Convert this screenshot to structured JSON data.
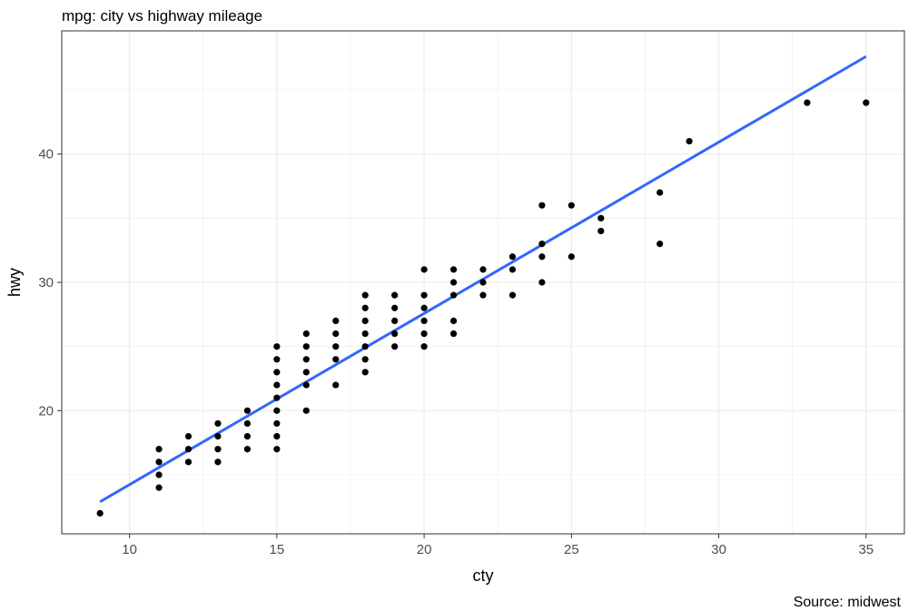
{
  "chart_data": {
    "type": "scatter",
    "title": "mpg: city vs highway mileage",
    "caption": "Source: midwest",
    "xlabel": "cty",
    "ylabel": "hwy",
    "xlim": [
      7.7,
      36.3
    ],
    "ylim": [
      10.4,
      49.6
    ],
    "x_ticks": [
      10,
      15,
      20,
      25,
      30,
      35
    ],
    "y_ticks": [
      20,
      30,
      40
    ],
    "grid": true,
    "legend": "none",
    "colors": {
      "points": "#000000",
      "trend_line": "#3366FF",
      "grid": "#ebebeb",
      "panel_border": "#333333"
    },
    "series": [
      {
        "kind": "points",
        "points": [
          [
            9,
            12
          ],
          [
            11,
            14
          ],
          [
            11,
            15
          ],
          [
            11,
            16
          ],
          [
            11,
            17
          ],
          [
            12,
            16
          ],
          [
            12,
            17
          ],
          [
            12,
            18
          ],
          [
            13,
            16
          ],
          [
            13,
            17
          ],
          [
            13,
            18
          ],
          [
            13,
            19
          ],
          [
            14,
            17
          ],
          [
            14,
            18
          ],
          [
            14,
            19
          ],
          [
            14,
            20
          ],
          [
            15,
            17
          ],
          [
            15,
            18
          ],
          [
            15,
            19
          ],
          [
            15,
            20
          ],
          [
            15,
            21
          ],
          [
            15,
            22
          ],
          [
            15,
            23
          ],
          [
            15,
            24
          ],
          [
            15,
            25
          ],
          [
            16,
            20
          ],
          [
            16,
            22
          ],
          [
            16,
            23
          ],
          [
            16,
            24
          ],
          [
            16,
            25
          ],
          [
            16,
            26
          ],
          [
            17,
            22
          ],
          [
            17,
            24
          ],
          [
            17,
            25
          ],
          [
            17,
            26
          ],
          [
            17,
            27
          ],
          [
            18,
            23
          ],
          [
            18,
            24
          ],
          [
            18,
            25
          ],
          [
            18,
            26
          ],
          [
            18,
            27
          ],
          [
            18,
            28
          ],
          [
            18,
            29
          ],
          [
            19,
            25
          ],
          [
            19,
            26
          ],
          [
            19,
            27
          ],
          [
            19,
            28
          ],
          [
            19,
            29
          ],
          [
            20,
            25
          ],
          [
            20,
            26
          ],
          [
            20,
            27
          ],
          [
            20,
            28
          ],
          [
            20,
            29
          ],
          [
            20,
            31
          ],
          [
            21,
            26
          ],
          [
            21,
            27
          ],
          [
            21,
            29
          ],
          [
            21,
            30
          ],
          [
            21,
            31
          ],
          [
            22,
            29
          ],
          [
            22,
            30
          ],
          [
            22,
            31
          ],
          [
            23,
            29
          ],
          [
            23,
            31
          ],
          [
            23,
            32
          ],
          [
            24,
            30
          ],
          [
            24,
            32
          ],
          [
            24,
            33
          ],
          [
            24,
            36
          ],
          [
            25,
            32
          ],
          [
            25,
            36
          ],
          [
            26,
            34
          ],
          [
            26,
            35
          ],
          [
            28,
            33
          ],
          [
            28,
            37
          ],
          [
            29,
            41
          ],
          [
            33,
            44
          ],
          [
            35,
            44
          ]
        ]
      },
      {
        "kind": "trend_line",
        "method": "linear",
        "x": [
          9,
          35
        ],
        "y": [
          12.9,
          47.6
        ]
      }
    ]
  }
}
